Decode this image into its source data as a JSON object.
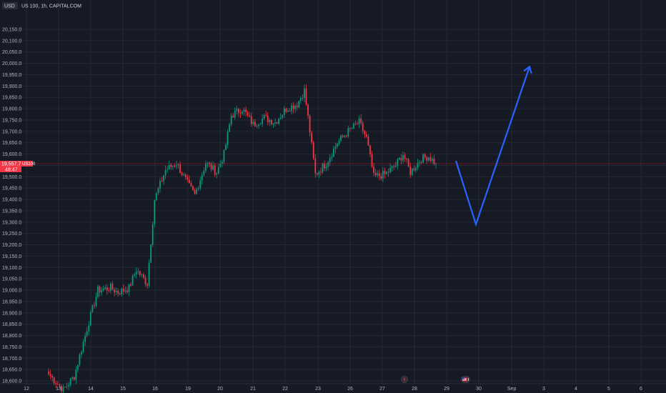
{
  "header": {
    "currency_badge": "USD",
    "symbol_title": "US 100, 1h, CAPITALCOM"
  },
  "price_tag": {
    "price": "19,557.7",
    "symbol": "US100",
    "countdown": "48:47"
  },
  "colors": {
    "background": "#161a25",
    "grid": "#242833",
    "up": "#089981",
    "down": "#f23645",
    "arrow": "#2962ff",
    "text": "#b2b5be"
  },
  "event_icons": [
    {
      "name": "lightning-event-icon",
      "near_label": "28"
    },
    {
      "name": "us-flag-event-icon",
      "near_label": "29"
    },
    {
      "name": "us-flag-event-icon",
      "near_label": "30"
    }
  ],
  "chart_data": {
    "type": "candlestick",
    "y_axis_labels": [
      "20,150.0",
      "20,100.0",
      "20,050.0",
      "20,000.0",
      "19,950.0",
      "19,900.0",
      "19,850.0",
      "19,800.0",
      "19,750.0",
      "19,700.0",
      "19,650.0",
      "19,600.0",
      "19,550.0",
      "19,500.0",
      "19,450.0",
      "19,400.0",
      "19,350.0",
      "19,300.0",
      "19,250.0",
      "19,200.0",
      "19,150.0",
      "19,100.0",
      "19,050.0",
      "19,000.0",
      "18,950.0",
      "18,900.0",
      "18,850.0",
      "18,800.0",
      "18,750.0",
      "18,700.0",
      "18,650.0",
      "18,600.0"
    ],
    "y_axis_values": [
      20150,
      20100,
      20050,
      20000,
      19950,
      19900,
      19850,
      19800,
      19750,
      19700,
      19650,
      19600,
      19550,
      19500,
      19450,
      19400,
      19350,
      19300,
      19250,
      19200,
      19150,
      19100,
      19050,
      19000,
      18950,
      18900,
      18850,
      18800,
      18750,
      18700,
      18650,
      18600
    ],
    "x_axis_labels": [
      "12",
      "13",
      "14",
      "15",
      "16",
      "19",
      "20",
      "21",
      "22",
      "23",
      "26",
      "27",
      "28",
      "29",
      "30",
      "Sep",
      "3",
      "4",
      "5",
      "6"
    ],
    "last_price": 19557.7,
    "anchors": [
      {
        "bar": 0,
        "price": 18630
      },
      {
        "bar": 8,
        "price": 18560
      },
      {
        "bar": 14,
        "price": 18620
      },
      {
        "bar": 22,
        "price": 18860
      },
      {
        "bar": 27,
        "price": 19000
      },
      {
        "bar": 34,
        "price": 19010
      },
      {
        "bar": 38,
        "price": 18990
      },
      {
        "bar": 44,
        "price": 19010
      },
      {
        "bar": 48,
        "price": 19090
      },
      {
        "bar": 54,
        "price": 19030
      },
      {
        "bar": 58,
        "price": 19400
      },
      {
        "bar": 64,
        "price": 19530
      },
      {
        "bar": 70,
        "price": 19560
      },
      {
        "bar": 76,
        "price": 19470
      },
      {
        "bar": 80,
        "price": 19420
      },
      {
        "bar": 86,
        "price": 19560
      },
      {
        "bar": 92,
        "price": 19520
      },
      {
        "bar": 96,
        "price": 19600
      },
      {
        "bar": 100,
        "price": 19770
      },
      {
        "bar": 106,
        "price": 19800
      },
      {
        "bar": 112,
        "price": 19730
      },
      {
        "bar": 118,
        "price": 19760
      },
      {
        "bar": 124,
        "price": 19740
      },
      {
        "bar": 130,
        "price": 19800
      },
      {
        "bar": 136,
        "price": 19820
      },
      {
        "bar": 140,
        "price": 19880
      },
      {
        "bar": 143,
        "price": 19700
      },
      {
        "bar": 146,
        "price": 19510
      },
      {
        "bar": 152,
        "price": 19560
      },
      {
        "bar": 158,
        "price": 19650
      },
      {
        "bar": 164,
        "price": 19700
      },
      {
        "bar": 170,
        "price": 19740
      },
      {
        "bar": 174,
        "price": 19670
      },
      {
        "bar": 178,
        "price": 19500
      },
      {
        "bar": 184,
        "price": 19510
      },
      {
        "bar": 190,
        "price": 19550
      },
      {
        "bar": 194,
        "price": 19600
      },
      {
        "bar": 198,
        "price": 19520
      },
      {
        "bar": 204,
        "price": 19580
      },
      {
        "bar": 208,
        "price": 19590
      },
      {
        "bar": 212,
        "price": 19557.7
      }
    ],
    "projection": [
      {
        "x_label": "29",
        "price": 19570
      },
      {
        "x_label": "30",
        "price": 19290
      },
      {
        "x_label": "3",
        "price": 19985
      }
    ]
  }
}
